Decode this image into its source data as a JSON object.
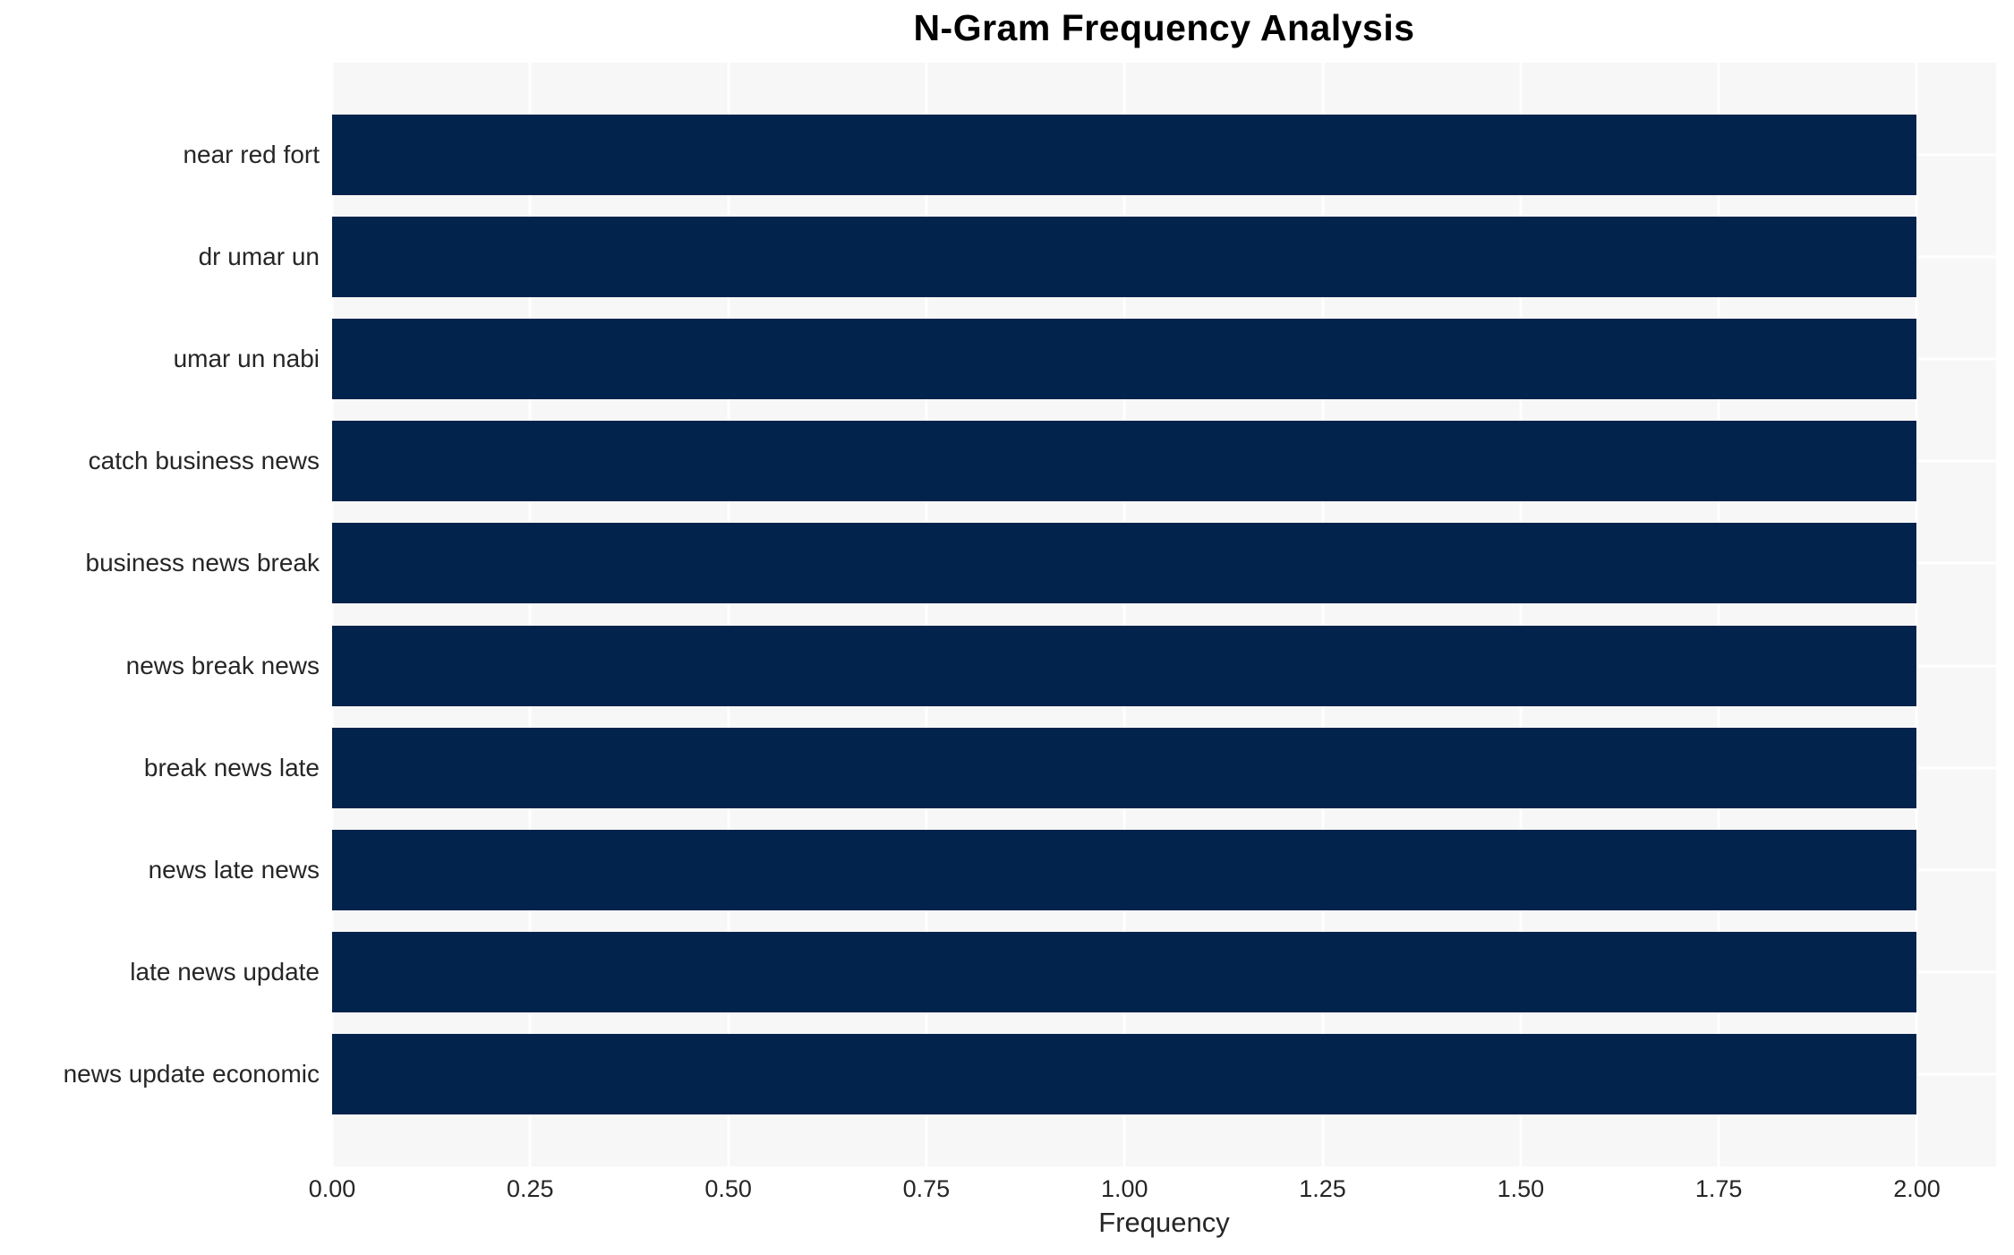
{
  "chart_data": {
    "type": "bar",
    "orientation": "horizontal",
    "title": "N-Gram Frequency Analysis",
    "xlabel": "Frequency",
    "ylabel": "",
    "categories": [
      "near red fort",
      "dr umar un",
      "umar un nabi",
      "catch business news",
      "business news break",
      "news break news",
      "break news late",
      "news late news",
      "late news update",
      "news update economic"
    ],
    "values": [
      2,
      2,
      2,
      2,
      2,
      2,
      2,
      2,
      2,
      2
    ],
    "xticks": [
      {
        "value": 0.0,
        "label": "0.00"
      },
      {
        "value": 0.25,
        "label": "0.25"
      },
      {
        "value": 0.5,
        "label": "0.50"
      },
      {
        "value": 0.75,
        "label": "0.75"
      },
      {
        "value": 1.0,
        "label": "1.00"
      },
      {
        "value": 1.25,
        "label": "1.25"
      },
      {
        "value": 1.5,
        "label": "1.50"
      },
      {
        "value": 1.75,
        "label": "1.75"
      },
      {
        "value": 2.0,
        "label": "2.00"
      }
    ],
    "xlim": [
      0,
      2.1
    ],
    "grid": true,
    "legend": "none",
    "colors": {
      "bar": "#02234c",
      "plot_background": "#f7f7f7",
      "gridline": "#ffffff",
      "text": "#262626",
      "title": "#000000",
      "page_background": "#ffffff"
    }
  }
}
